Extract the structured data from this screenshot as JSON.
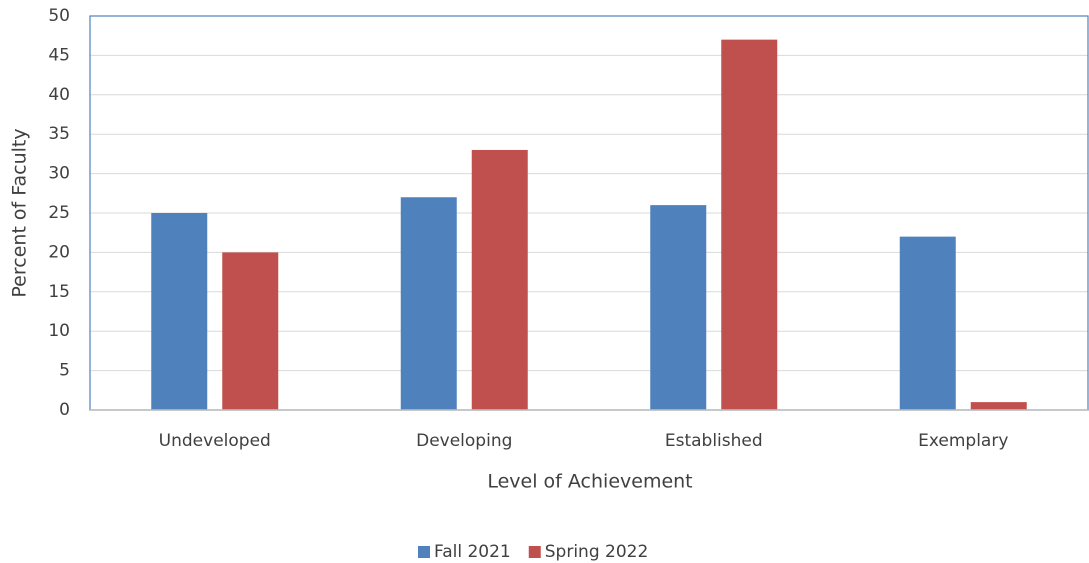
{
  "chart_data": {
    "type": "bar",
    "x_label": "Level of Achievement",
    "y_label": "Percent of Faculty",
    "categories": [
      "Undeveloped",
      "Developing",
      "Established",
      "Exemplary"
    ],
    "series": [
      {
        "name": "Fall 2021",
        "color": "#4f81bd",
        "values": [
          25,
          27,
          26,
          22
        ]
      },
      {
        "name": "Spring 2022",
        "color": "#c0504d",
        "values": [
          20,
          33,
          47,
          1
        ]
      }
    ],
    "ylim": [
      0,
      50
    ],
    "yticks": [
      0,
      5,
      10,
      15,
      20,
      25,
      30,
      35,
      40,
      45,
      50
    ],
    "grid": true,
    "legend": "bottom"
  }
}
